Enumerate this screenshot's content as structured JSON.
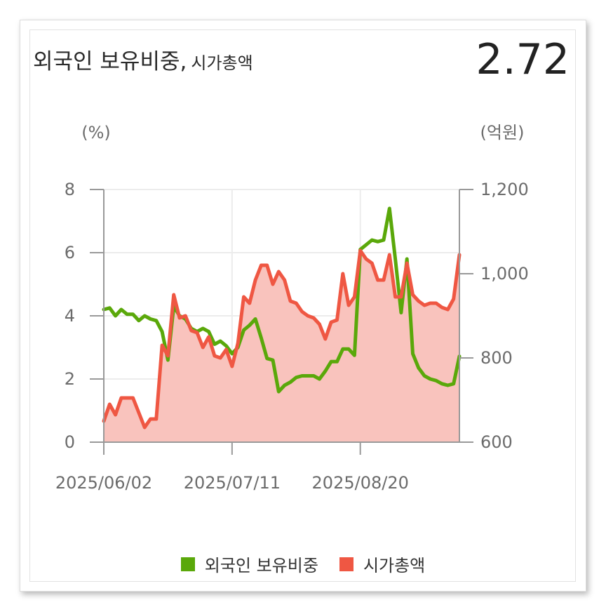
{
  "header": {
    "title_main": "외국인 보유비중,",
    "title_sub": "시가총액",
    "current_value": "2.72"
  },
  "colors": {
    "foreign_ratio": "#5aa80a",
    "market_cap": "#ef5743",
    "area_fill": "#f9c3bd"
  },
  "chart_data": {
    "type": "line",
    "left_unit": "(%)",
    "right_unit": "(억원)",
    "left_ylim": [
      0,
      8
    ],
    "right_ylim": [
      600,
      1200
    ],
    "left_ticks": [
      "8",
      "6",
      "4",
      "2",
      "0"
    ],
    "right_ticks": [
      "1,200",
      "1,000",
      "800",
      "600"
    ],
    "x_tick_labels": [
      "2025/06/02",
      "2025/07/11",
      "2025/08/20"
    ],
    "grid": true,
    "legend_position": "bottom",
    "series": [
      {
        "name": "외국인 보유비중",
        "axis": "left",
        "values": [
          4.2,
          4.25,
          4.0,
          4.2,
          4.05,
          4.05,
          3.85,
          4.0,
          3.9,
          3.85,
          3.5,
          2.6,
          4.3,
          4.0,
          3.9,
          3.6,
          3.5,
          3.6,
          3.5,
          3.1,
          3.2,
          3.05,
          2.8,
          3.0,
          3.55,
          3.7,
          3.9,
          3.3,
          2.65,
          2.6,
          1.6,
          1.8,
          1.9,
          2.05,
          2.1,
          2.1,
          2.1,
          2.0,
          2.25,
          2.55,
          2.55,
          2.95,
          2.95,
          2.75,
          6.1,
          6.25,
          6.4,
          6.35,
          6.4,
          7.4,
          5.8,
          4.1,
          5.8,
          2.8,
          2.35,
          2.1,
          2.0,
          1.95,
          1.85,
          1.8,
          1.85,
          2.72
        ]
      },
      {
        "name": "시가총액",
        "axis": "right",
        "values": [
          650,
          690,
          665,
          705,
          705,
          705,
          670,
          635,
          655,
          655,
          830,
          805,
          950,
          895,
          900,
          865,
          860,
          825,
          850,
          805,
          800,
          820,
          780,
          835,
          945,
          930,
          985,
          1020,
          1020,
          975,
          1005,
          985,
          935,
          930,
          910,
          900,
          895,
          880,
          845,
          885,
          890,
          1000,
          925,
          945,
          1055,
          1035,
          1025,
          985,
          985,
          1045,
          945,
          945,
          1025,
          950,
          935,
          925,
          930,
          930,
          920,
          915,
          940,
          1045
        ]
      }
    ]
  },
  "legend": {
    "foreign_ratio_label": "외국인 보유비중",
    "market_cap_label": "시가총액"
  }
}
